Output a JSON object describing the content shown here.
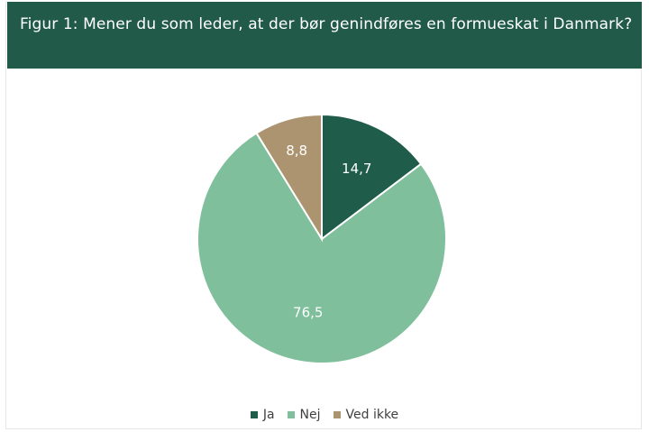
{
  "header": {
    "title": "Figur 1:  Mener du som leder, at der bør genindføres en formueskat i Danmark?"
  },
  "colors": {
    "header_bg": "#215a48",
    "ja": "#1f5c4a",
    "nej": "#7fbf9c",
    "ved_ikke": "#ad9470"
  },
  "chart_data": {
    "type": "pie",
    "title": "Figur 1:  Mener du som leder, at der bør genindføres en formueskat i Danmark?",
    "legend_position": "bottom",
    "slices": [
      {
        "label": "Ja",
        "value": 14.7,
        "value_label": "14,7",
        "color": "#1f5c4a"
      },
      {
        "label": "Nej",
        "value": 76.5,
        "value_label": "76,5",
        "color": "#7fbf9c"
      },
      {
        "label": "Ved ikke",
        "value": 8.8,
        "value_label": "8,8",
        "color": "#ad9470"
      }
    ]
  }
}
